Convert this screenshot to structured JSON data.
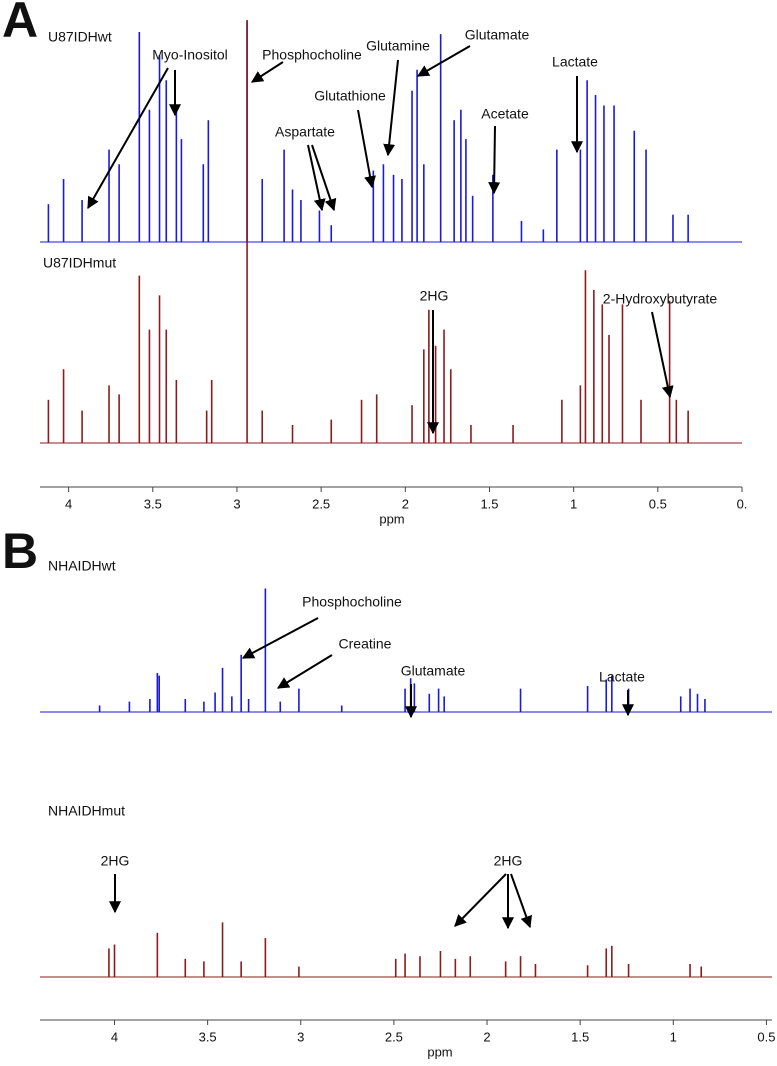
{
  "chart_data": [
    {
      "type": "spectrum",
      "panel": "A",
      "xlabel": "ppm",
      "xlim": [
        4.17,
        0
      ],
      "xticks": [
        4.0,
        3.5,
        3.0,
        2.5,
        2.0,
        1.5,
        1.0,
        0.5,
        {
          "value": 0,
          "label": "0."
        }
      ],
      "series": [
        {
          "name": "U87IDHwt",
          "color": "#1a1adb",
          "x": [
            4.12,
            4.03,
            3.92,
            3.76,
            3.7,
            3.58,
            3.52,
            3.46,
            3.42,
            3.36,
            3.33,
            3.2,
            3.17,
            2.94,
            2.85,
            2.72,
            2.67,
            2.62,
            2.51,
            2.44,
            2.19,
            2.13,
            2.07,
            2.02,
            1.96,
            1.93,
            1.89,
            1.79,
            1.71,
            1.67,
            1.64,
            1.6,
            1.48,
            1.31,
            1.18,
            1.1,
            0.96,
            0.92,
            0.87,
            0.82,
            0.76,
            0.64,
            0.57,
            0.41,
            0.32
          ],
          "values": [
            18,
            30,
            20,
            44,
            37,
            100,
            63,
            89,
            77,
            63,
            49,
            37,
            58,
            105,
            30,
            44,
            25,
            20,
            15,
            8,
            34,
            37,
            32,
            30,
            72,
            82,
            37,
            99,
            58,
            63,
            49,
            22,
            32,
            10,
            6,
            44,
            44,
            77,
            70,
            65,
            65,
            53,
            44,
            13,
            13
          ]
        },
        {
          "name": "U87IDHmut",
          "color": "#8b1c1c",
          "x": [
            4.12,
            4.03,
            3.92,
            3.76,
            3.7,
            3.58,
            3.52,
            3.46,
            3.42,
            3.36,
            3.18,
            3.15,
            2.94,
            2.85,
            2.67,
            2.44,
            2.26,
            2.17,
            1.96,
            1.89,
            1.86,
            1.82,
            1.77,
            1.73,
            1.61,
            1.36,
            1.07,
            0.96,
            0.93,
            0.88,
            0.83,
            0.79,
            0.71,
            0.6,
            0.43,
            0.39,
            0.32
          ],
          "values": [
            24,
            41,
            18,
            32,
            27,
            93,
            63,
            82,
            63,
            35,
            18,
            35,
            235,
            18,
            10,
            13,
            24,
            27,
            21,
            52,
            74,
            54,
            63,
            41,
            10,
            10,
            24,
            32,
            96,
            85,
            77,
            60,
            77,
            24,
            79,
            24,
            18
          ]
        }
      ],
      "annotations": [
        "Myo-Inositol",
        "Phosphocholine",
        "Aspartate",
        "Glutamine",
        "Glutamate",
        "Glutathione",
        "Acetate",
        "Lactate",
        "2HG",
        "2-Hydroxybutyrate"
      ]
    },
    {
      "type": "spectrum",
      "panel": "B",
      "xlabel": "ppm",
      "xlim": [
        4.4,
        0.47
      ],
      "xticks": [
        4.0,
        3.5,
        3.0,
        2.5,
        2.0,
        1.5,
        1.0,
        0.5
      ],
      "series": [
        {
          "name": "NHAIDHwt",
          "color": "#1a1adb",
          "x": [
            4.08,
            3.92,
            3.81,
            3.77,
            3.76,
            3.62,
            3.52,
            3.46,
            3.42,
            3.37,
            3.32,
            3.28,
            3.19,
            3.11,
            3.01,
            2.78,
            2.44,
            2.41,
            2.39,
            2.31,
            2.26,
            2.23,
            1.82,
            1.46,
            1.36,
            1.33,
            1.24,
            0.96,
            0.91,
            0.87,
            0.83
          ],
          "values": [
            5,
            8,
            10,
            30,
            28,
            10,
            8,
            15,
            34,
            12,
            44,
            10,
            95,
            8,
            18,
            5,
            18,
            26,
            22,
            14,
            18,
            12,
            18,
            20,
            25,
            28,
            18,
            12,
            18,
            14,
            10
          ]
        },
        {
          "name": "NHAIDHmut",
          "color": "#8b1c1c",
          "x": [
            4.03,
            4.0,
            3.77,
            3.62,
            3.52,
            3.42,
            3.32,
            3.19,
            3.01,
            2.49,
            2.44,
            2.36,
            2.25,
            2.17,
            2.09,
            1.9,
            1.82,
            1.74,
            1.46,
            1.36,
            1.33,
            1.24,
            0.91,
            0.85
          ],
          "values": [
            22,
            25,
            34,
            14,
            12,
            42,
            12,
            30,
            8,
            14,
            18,
            16,
            20,
            14,
            16,
            12,
            16,
            10,
            9,
            22,
            24,
            10,
            10,
            8
          ]
        }
      ],
      "annotations": [
        "Phosphocholine",
        "Creatine",
        "Glutamate",
        "Lactate",
        "2HG",
        "2HG"
      ]
    }
  ]
}
